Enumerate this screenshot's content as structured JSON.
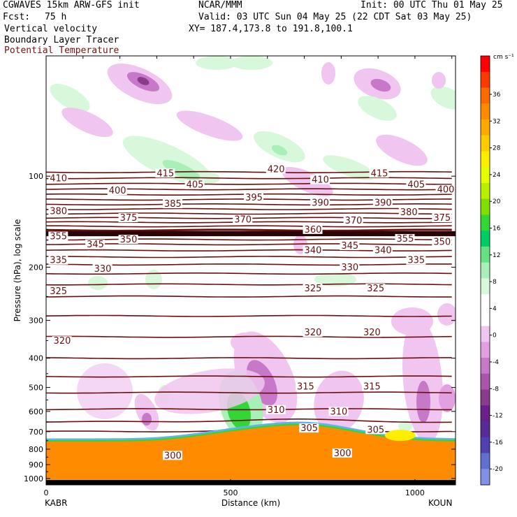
{
  "header": {
    "model": "CGWAVES 15km ARW-GFS init",
    "forecast_label": "Fcst:",
    "forecast_value": "75 h",
    "org": "NCAR/MMM",
    "init": "Init: 00 UTC Thu 01 May 25",
    "valid": "Valid: 03 UTC Sun 04 May 25 (22 CDT Sat 03 May 25)",
    "xy": "XY= 187.4,173.8 to 191.8,100.1",
    "field1": "Vertical velocity",
    "field2": "Boundary Layer Tracer",
    "field3": "Potential Temperature"
  },
  "colors": {
    "theta_line": "#6b0e0e",
    "terrain": "#000000",
    "pbl_orange": "#ff8c00"
  },
  "chart_data": {
    "type": "heatmap",
    "title": "",
    "xlabel": "Distance (km)",
    "ylabel": "Pressure (hPa), log scale",
    "xlim": [
      0,
      1110
    ],
    "ylim": [
      1050,
      40
    ],
    "y_scale": "log",
    "x_ticks": [
      {
        "value": 0,
        "label": "0"
      },
      {
        "value": 500,
        "label": "500"
      },
      {
        "value": 1000,
        "label": "1000"
      }
    ],
    "y_ticks": [
      {
        "value": 100,
        "label": "100"
      },
      {
        "value": 200,
        "label": "200"
      },
      {
        "value": 300,
        "label": "300"
      },
      {
        "value": 400,
        "label": "400"
      },
      {
        "value": 500,
        "label": "500"
      },
      {
        "value": 600,
        "label": "600"
      },
      {
        "value": 700,
        "label": "700"
      },
      {
        "value": 800,
        "label": "800"
      },
      {
        "value": 900,
        "label": "900"
      },
      {
        "value": 1000,
        "label": "1000"
      }
    ],
    "endpoints": {
      "left": "KABR",
      "right": "KOUN"
    },
    "colorbar": {
      "unit": "cm s⁻¹",
      "labels": [
        "36",
        "32",
        "28",
        "24",
        "20",
        "16",
        "12",
        "8",
        "4",
        "0",
        "-4",
        "-8",
        "-12",
        "-16",
        "-20"
      ],
      "colors": [
        "#ff0000",
        "#ff3a00",
        "#ff6a00",
        "#ff8c00",
        "#ffaa00",
        "#ffcc00",
        "#ffee00",
        "#e6ff00",
        "#b8f000",
        "#7de000",
        "#33d633",
        "#00cc66",
        "#66e080",
        "#a8f0b8",
        "#d8f8dc",
        "#ffffff",
        "#ffffff",
        "#f0c6f0",
        "#e2a0e2",
        "#c878c8",
        "#aa55aa",
        "#8a3c8a",
        "#6a1f8a",
        "#5a2a9a",
        "#5040b0",
        "#6070d0",
        "#8090e6"
      ]
    },
    "theta_labels": [
      {
        "text": "410",
        "x": 10,
        "p": 103
      },
      {
        "text": "415",
        "x": 300,
        "p": 99
      },
      {
        "text": "420",
        "x": 600,
        "p": 96
      },
      {
        "text": "410",
        "x": 720,
        "p": 104
      },
      {
        "text": "415",
        "x": 880,
        "p": 99
      },
      {
        "text": "400",
        "x": 170,
        "p": 113
      },
      {
        "text": "405",
        "x": 380,
        "p": 108
      },
      {
        "text": "405",
        "x": 980,
        "p": 108
      },
      {
        "text": "400",
        "x": 1060,
        "p": 112
      },
      {
        "text": "395",
        "x": 540,
        "p": 119
      },
      {
        "text": "385",
        "x": 320,
        "p": 125
      },
      {
        "text": "390",
        "x": 720,
        "p": 124
      },
      {
        "text": "390",
        "x": 890,
        "p": 124
      },
      {
        "text": "380",
        "x": 10,
        "p": 132
      },
      {
        "text": "375",
        "x": 200,
        "p": 139
      },
      {
        "text": "380",
        "x": 960,
        "p": 133
      },
      {
        "text": "375",
        "x": 1050,
        "p": 139
      },
      {
        "text": "370",
        "x": 510,
        "p": 141
      },
      {
        "text": "360",
        "x": 700,
        "p": 152
      },
      {
        "text": "370",
        "x": 810,
        "p": 142
      },
      {
        "text": "355",
        "x": 10,
        "p": 160
      },
      {
        "text": "345",
        "x": 110,
        "p": 170
      },
      {
        "text": "350",
        "x": 200,
        "p": 164
      },
      {
        "text": "355",
        "x": 950,
        "p": 163
      },
      {
        "text": "350",
        "x": 1050,
        "p": 167
      },
      {
        "text": "340",
        "x": 700,
        "p": 178
      },
      {
        "text": "345",
        "x": 800,
        "p": 172
      },
      {
        "text": "340",
        "x": 890,
        "p": 178
      },
      {
        "text": "335",
        "x": 10,
        "p": 192
      },
      {
        "text": "330",
        "x": 130,
        "p": 205
      },
      {
        "text": "330",
        "x": 800,
        "p": 203
      },
      {
        "text": "335",
        "x": 980,
        "p": 192
      },
      {
        "text": "325",
        "x": 10,
        "p": 243
      },
      {
        "text": "325",
        "x": 700,
        "p": 238
      },
      {
        "text": "325",
        "x": 870,
        "p": 238
      },
      {
        "text": "320",
        "x": 20,
        "p": 355
      },
      {
        "text": "320",
        "x": 700,
        "p": 333
      },
      {
        "text": "320",
        "x": 860,
        "p": 333
      },
      {
        "text": "315",
        "x": 680,
        "p": 503
      },
      {
        "text": "315",
        "x": 860,
        "p": 503
      },
      {
        "text": "310",
        "x": 600,
        "p": 600
      },
      {
        "text": "310",
        "x": 770,
        "p": 608
      },
      {
        "text": "305",
        "x": 690,
        "p": 690
      },
      {
        "text": "305",
        "x": 870,
        "p": 698
      },
      {
        "text": "300",
        "x": 320,
        "p": 850
      },
      {
        "text": "300",
        "x": 780,
        "p": 835
      }
    ]
  }
}
